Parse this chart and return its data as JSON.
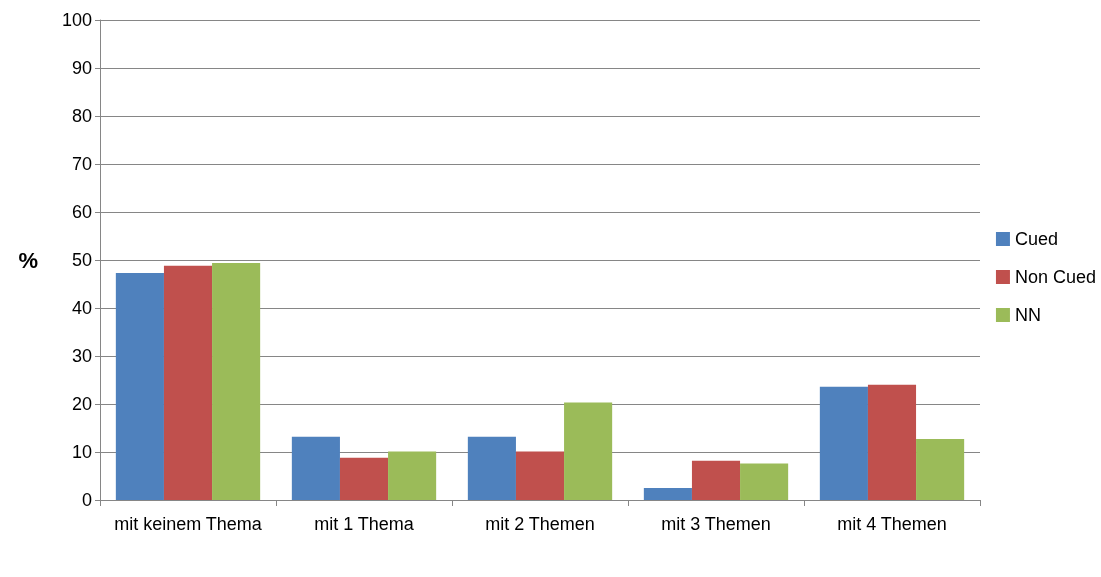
{
  "chart_data": {
    "type": "bar",
    "ylabel": "%",
    "categories": [
      "mit keinem Thema",
      "mit 1 Thema",
      "mit 2 Themen",
      "mit 3 Themen",
      "mit 4 Themen"
    ],
    "series": [
      {
        "name": "Cued",
        "color": "#4f81bd",
        "values": [
          47.3,
          13.2,
          13.2,
          2.5,
          23.6
        ]
      },
      {
        "name": "Non Cued",
        "color": "#c0504d",
        "values": [
          48.8,
          8.8,
          10.1,
          8.2,
          24
        ]
      },
      {
        "name": "NN",
        "color": "#9bbb59",
        "values": [
          49.4,
          10.1,
          20.3,
          7.6,
          12.7
        ]
      }
    ],
    "ylim": [
      0,
      100
    ],
    "yticks": [
      0,
      10,
      20,
      30,
      40,
      50,
      60,
      70,
      80,
      90,
      100
    ],
    "grid": "y",
    "legend": "right"
  }
}
